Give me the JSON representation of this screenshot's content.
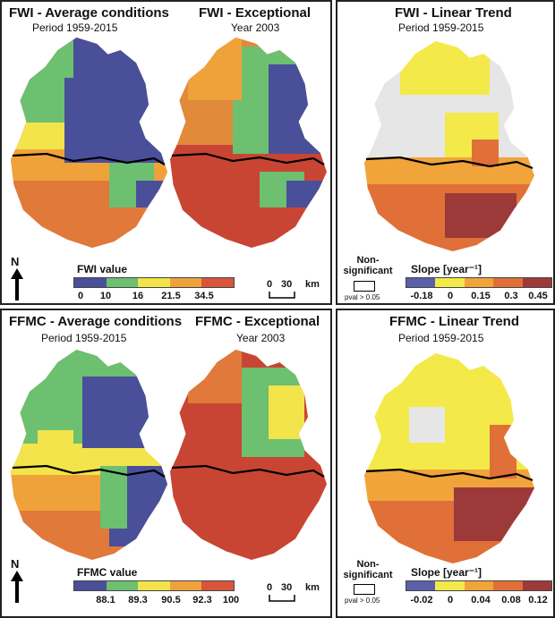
{
  "top": {
    "fwi_avg": {
      "title": "FWI - Average conditions",
      "subtitle": "Period 1959-2015"
    },
    "fwi_exc": {
      "title": "FWI - Exceptional",
      "subtitle": "Year 2003"
    },
    "fwi_trend": {
      "title": "FWI - Linear Trend",
      "subtitle": "Period 1959-2015"
    },
    "legend_title": "FWI value",
    "legend_ticks": [
      "0",
      "10",
      "16",
      "21.5",
      "34.5"
    ],
    "trend_legend_title": "Slope [year⁻¹]",
    "trend_ticks": [
      "-0.18",
      "0",
      "0.15",
      "0.3",
      "0.45"
    ]
  },
  "bottom": {
    "ffmc_avg": {
      "title": "FFMC - Average conditions",
      "subtitle": "Period 1959-2015"
    },
    "ffmc_exc": {
      "title": "FFMC - Exceptional",
      "subtitle": "Year 2003"
    },
    "ffmc_trend": {
      "title": "FFMC - Linear Trend",
      "subtitle": "Period 1959-2015"
    },
    "legend_title": "FFMC value",
    "legend_ticks": [
      "88.1",
      "89.3",
      "90.5",
      "92.3",
      "100"
    ],
    "trend_legend_title": "Slope [year⁻¹]",
    "trend_ticks": [
      "-0.02",
      "0",
      "0.04",
      "0.08",
      "0.12"
    ]
  },
  "common": {
    "non_significant": "Non-\nsignificant",
    "pval": "pval > 0.05",
    "north": "N",
    "scale_zero": "0",
    "scale_value": "30",
    "scale_unit": "km"
  },
  "colors": {
    "value_scale": [
      "#4a4f9a",
      "#6cc070",
      "#f2e44a",
      "#f0a23a",
      "#d9553a"
    ],
    "trend_scale": [
      "#5a5fa8",
      "#f3ea4a",
      "#f0a43a",
      "#e07038",
      "#9c3a3a"
    ],
    "non_significant": "#e6e6e6",
    "border": "#000000"
  }
}
